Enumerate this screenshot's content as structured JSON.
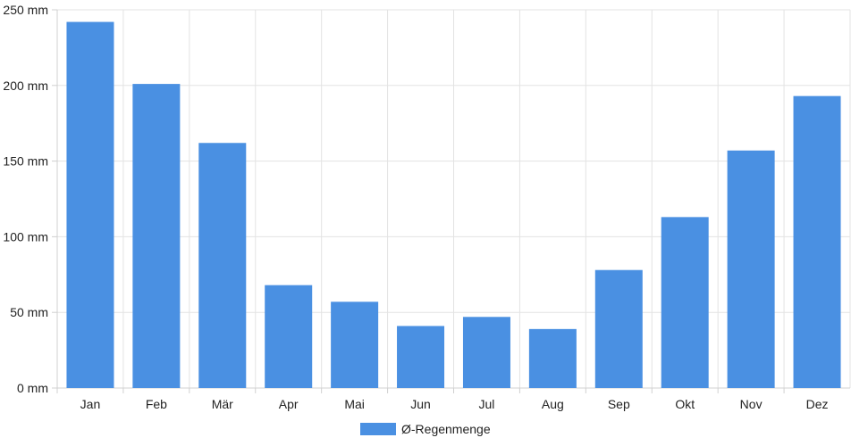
{
  "chart_data": {
    "type": "bar",
    "categories": [
      "Jan",
      "Feb",
      "Mär",
      "Apr",
      "Mai",
      "Jun",
      "Jul",
      "Aug",
      "Sep",
      "Okt",
      "Nov",
      "Dez"
    ],
    "series": [
      {
        "name": "Ø-Regenmenge",
        "values": [
          242,
          201,
          162,
          68,
          57,
          41,
          47,
          39,
          78,
          113,
          157,
          193
        ],
        "color": "#4a90e2"
      }
    ],
    "yticks": [
      {
        "value": 0,
        "label": "0 mm"
      },
      {
        "value": 50,
        "label": "50 mm"
      },
      {
        "value": 100,
        "label": "100 mm"
      },
      {
        "value": 150,
        "label": "150 mm"
      },
      {
        "value": 200,
        "label": "200 mm"
      },
      {
        "value": 250,
        "label": "250 mm"
      }
    ],
    "ylim": [
      0,
      250
    ],
    "grid": true,
    "legend_position": "bottom"
  }
}
